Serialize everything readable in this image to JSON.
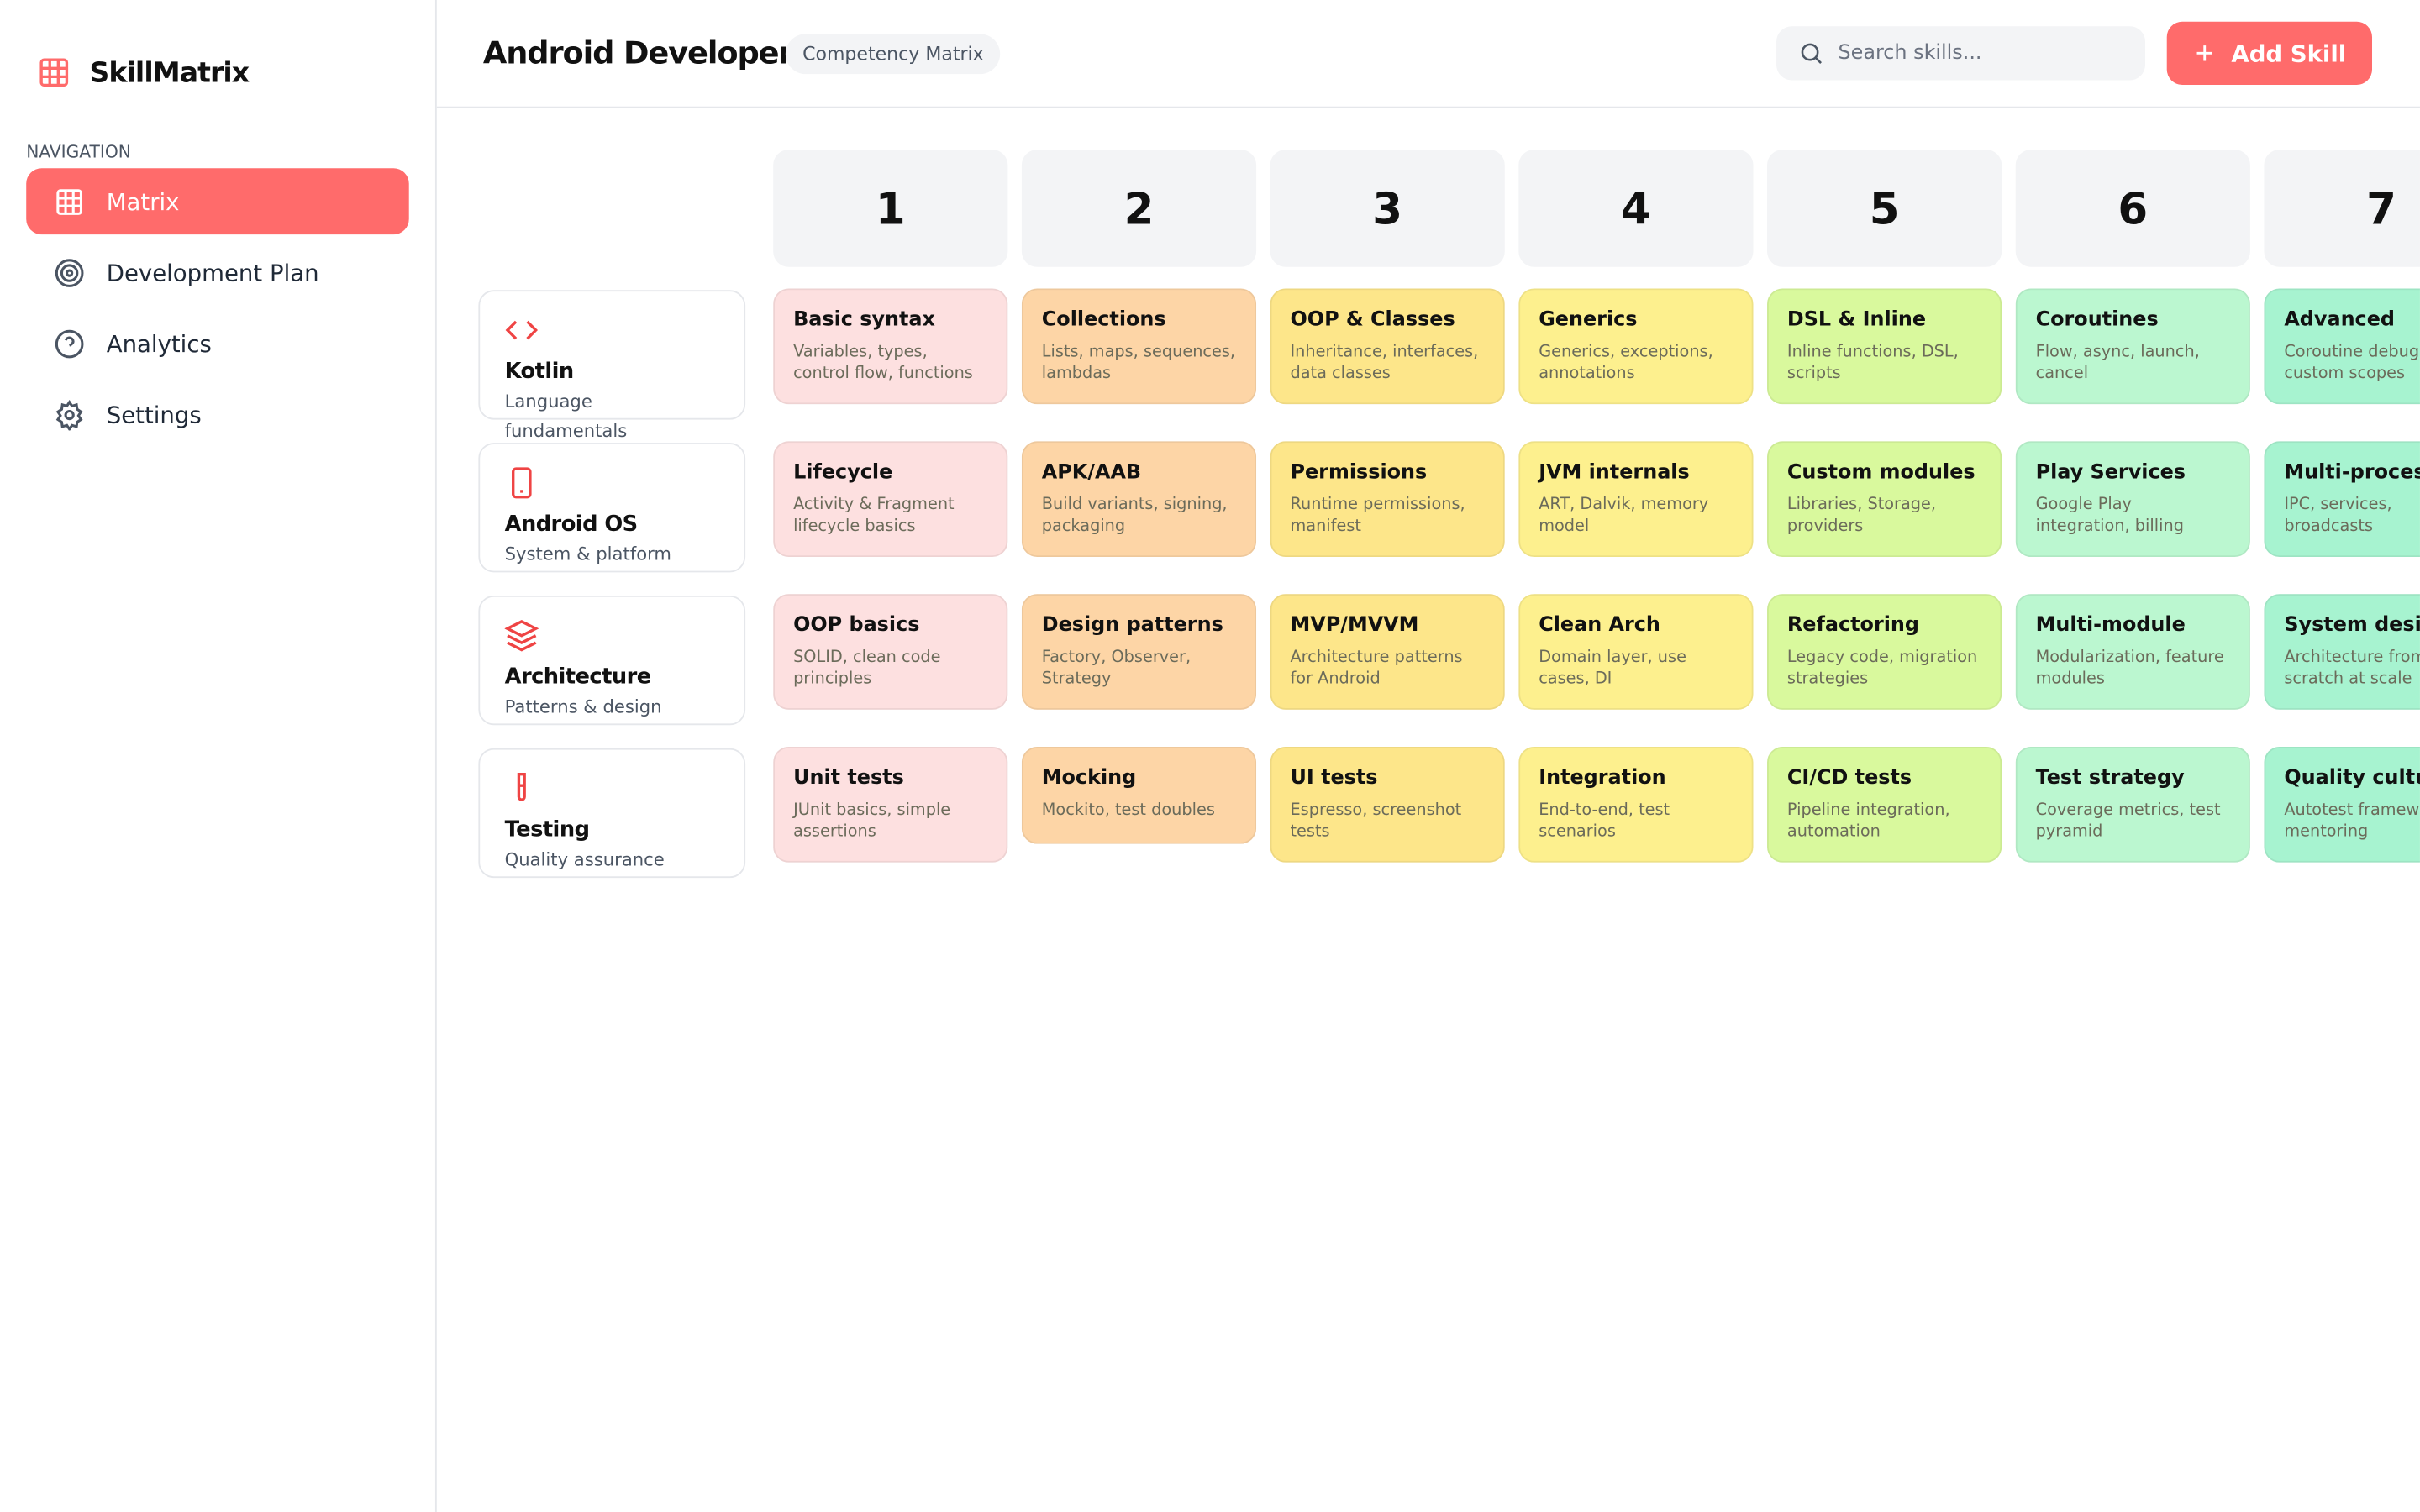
{
  "sidebar": {
    "brand": "SkillMatrix",
    "nav_label": "NAVIGATION",
    "nav": [
      "Matrix",
      "Development Plan",
      "Analytics",
      "Settings"
    ]
  },
  "header": {
    "title": "Android Developer",
    "badge": "Competency Matrix",
    "search_placeholder": "Search skills...",
    "button": "Add Skill"
  },
  "matrix": {
    "levels": [
      "1",
      "2",
      "3",
      "4",
      "5",
      "6",
      "7"
    ],
    "rows": [
      {
        "name": "Kotlin",
        "subtitle": "Language fundamentals",
        "cells": [
          {
            "title": "Basic syntax",
            "desc": "Variables, types, control flow, functions"
          },
          {
            "title": "Collections",
            "desc": "Lists, maps, sequences, lambdas"
          },
          {
            "title": "OOP & Classes",
            "desc": "Inheritance, interfaces, data classes"
          },
          {
            "title": "Generics",
            "desc": "Generics, exceptions, annotations"
          },
          {
            "title": "DSL & Inline",
            "desc": "Inline functions, DSL, scripts"
          },
          {
            "title": "Coroutines",
            "desc": "Flow, async, launch, cancel"
          },
          {
            "title": "Advanced",
            "desc": "Coroutine debugging, custom scopes"
          }
        ]
      },
      {
        "name": "Android OS",
        "subtitle": "System & platform",
        "cells": [
          {
            "title": "Lifecycle",
            "desc": "Activity & Fragment lifecycle basics"
          },
          {
            "title": "APK/AAB",
            "desc": "Build variants, signing, packaging"
          },
          {
            "title": "Permissions",
            "desc": "Runtime permissions, manifest"
          },
          {
            "title": "JVM internals",
            "desc": "ART, Dalvik, memory model"
          },
          {
            "title": "Custom modules",
            "desc": "Libraries, Storage, providers"
          },
          {
            "title": "Play Services",
            "desc": "Google Play integration, billing"
          },
          {
            "title": "Multi-process",
            "desc": "IPC, services, broadcasts"
          }
        ]
      },
      {
        "name": "Architecture",
        "subtitle": "Patterns & design",
        "cells": [
          {
            "title": "OOP basics",
            "desc": "SOLID, clean code principles"
          },
          {
            "title": "Design patterns",
            "desc": "Factory, Observer, Strategy"
          },
          {
            "title": "MVP/MVVM",
            "desc": "Architecture patterns for Android"
          },
          {
            "title": "Clean Arch",
            "desc": "Domain layer, use cases, DI"
          },
          {
            "title": "Refactoring",
            "desc": "Legacy code, migration strategies"
          },
          {
            "title": "Multi-module",
            "desc": "Modularization, feature modules"
          },
          {
            "title": "System design",
            "desc": "Architecture from scratch at scale"
          }
        ]
      },
      {
        "name": "Testing",
        "subtitle": "Quality assurance",
        "cells": [
          {
            "title": "Unit tests",
            "desc": "JUnit basics, simple assertions"
          },
          {
            "title": "Mocking",
            "desc": "Mockito, test doubles"
          },
          {
            "title": "UI tests",
            "desc": "Espresso, screenshot tests"
          },
          {
            "title": "Integration",
            "desc": "End-to-end, test scenarios"
          },
          {
            "title": "CI/CD tests",
            "desc": "Pipeline integration, automation"
          },
          {
            "title": "Test strategy",
            "desc": "Coverage metrics, test pyramid"
          },
          {
            "title": "Quality culture",
            "desc": "Autotest frameworks, mentoring"
          }
        ]
      }
    ]
  }
}
